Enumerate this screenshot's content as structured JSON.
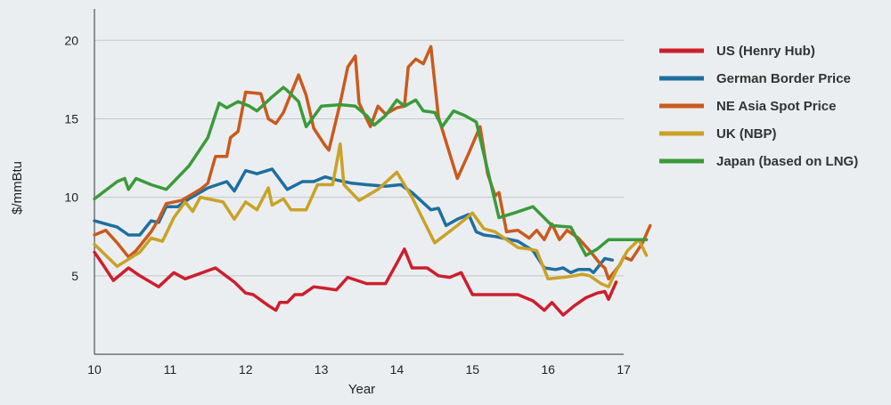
{
  "chart_data": {
    "type": "line",
    "xlabel": "Year",
    "ylabel": "$/mmBtu",
    "xlim": [
      10,
      17
    ],
    "ylim": [
      0,
      22
    ],
    "xticks": [
      10,
      11,
      12,
      13,
      14,
      15,
      16,
      17
    ],
    "xtick_labels": [
      "10",
      "11",
      "12",
      "13",
      "14",
      "15",
      "16",
      "17"
    ],
    "yticks": [
      5,
      10,
      15,
      20
    ],
    "ytick_labels": [
      "5",
      "10",
      "15",
      "20"
    ],
    "grid": "horizontal",
    "legend_position": "right",
    "series": [
      {
        "name": "US (Henry Hub)",
        "color": "#cc1f2e",
        "points": [
          [
            10.0,
            6.5
          ],
          [
            10.1,
            5.8
          ],
          [
            10.25,
            4.7
          ],
          [
            10.45,
            5.5
          ],
          [
            10.6,
            5.0
          ],
          [
            10.85,
            4.3
          ],
          [
            11.05,
            5.2
          ],
          [
            11.2,
            4.8
          ],
          [
            11.6,
            5.5
          ],
          [
            11.85,
            4.6
          ],
          [
            12.0,
            3.9
          ],
          [
            12.1,
            3.8
          ],
          [
            12.3,
            3.1
          ],
          [
            12.4,
            2.8
          ],
          [
            12.45,
            3.3
          ],
          [
            12.55,
            3.3
          ],
          [
            12.65,
            3.8
          ],
          [
            12.75,
            3.8
          ],
          [
            12.9,
            4.3
          ],
          [
            13.05,
            4.2
          ],
          [
            13.2,
            4.1
          ],
          [
            13.35,
            4.9
          ],
          [
            13.6,
            4.5
          ],
          [
            13.85,
            4.5
          ],
          [
            14.0,
            5.8
          ],
          [
            14.1,
            6.7
          ],
          [
            14.2,
            5.5
          ],
          [
            14.4,
            5.5
          ],
          [
            14.55,
            5.0
          ],
          [
            14.7,
            4.9
          ],
          [
            14.85,
            5.2
          ],
          [
            15.0,
            3.8
          ],
          [
            15.3,
            3.8
          ],
          [
            15.6,
            3.8
          ],
          [
            15.8,
            3.4
          ],
          [
            15.95,
            2.8
          ],
          [
            16.05,
            3.3
          ],
          [
            16.2,
            2.5
          ],
          [
            16.35,
            3.1
          ],
          [
            16.5,
            3.6
          ],
          [
            16.65,
            3.9
          ],
          [
            16.75,
            4.0
          ],
          [
            16.8,
            3.5
          ],
          [
            16.9,
            4.6
          ]
        ]
      },
      {
        "name": "German Border Price",
        "color": "#1e6fa0",
        "points": [
          [
            10.0,
            8.5
          ],
          [
            10.15,
            8.3
          ],
          [
            10.3,
            8.1
          ],
          [
            10.45,
            7.6
          ],
          [
            10.6,
            7.6
          ],
          [
            10.75,
            8.5
          ],
          [
            10.85,
            8.4
          ],
          [
            10.95,
            9.4
          ],
          [
            11.1,
            9.4
          ],
          [
            11.25,
            9.9
          ],
          [
            11.5,
            10.6
          ],
          [
            11.75,
            11.0
          ],
          [
            11.85,
            10.4
          ],
          [
            12.0,
            11.7
          ],
          [
            12.15,
            11.5
          ],
          [
            12.35,
            11.8
          ],
          [
            12.55,
            10.5
          ],
          [
            12.75,
            11.0
          ],
          [
            12.9,
            11.0
          ],
          [
            13.05,
            11.3
          ],
          [
            13.2,
            11.1
          ],
          [
            13.4,
            10.9
          ],
          [
            13.6,
            10.8
          ],
          [
            13.85,
            10.7
          ],
          [
            14.05,
            10.8
          ],
          [
            14.2,
            10.3
          ],
          [
            14.45,
            9.2
          ],
          [
            14.55,
            9.3
          ],
          [
            14.65,
            8.2
          ],
          [
            14.8,
            8.6
          ],
          [
            14.95,
            8.9
          ],
          [
            15.05,
            7.8
          ],
          [
            15.15,
            7.6
          ],
          [
            15.3,
            7.5
          ],
          [
            15.6,
            7.2
          ],
          [
            15.8,
            6.6
          ],
          [
            15.95,
            5.5
          ],
          [
            16.1,
            5.4
          ],
          [
            16.2,
            5.5
          ],
          [
            16.3,
            5.2
          ],
          [
            16.4,
            5.4
          ],
          [
            16.55,
            5.4
          ],
          [
            16.6,
            5.2
          ],
          [
            16.75,
            6.1
          ],
          [
            16.85,
            6.0
          ]
        ]
      },
      {
        "name": "NE Asia Spot Price",
        "color": "#c95a1e",
        "points": [
          [
            10.0,
            7.6
          ],
          [
            10.15,
            7.9
          ],
          [
            10.3,
            7.1
          ],
          [
            10.45,
            6.2
          ],
          [
            10.55,
            6.6
          ],
          [
            10.75,
            7.8
          ],
          [
            10.85,
            8.6
          ],
          [
            10.95,
            9.6
          ],
          [
            11.15,
            9.8
          ],
          [
            11.4,
            10.5
          ],
          [
            11.5,
            10.9
          ],
          [
            11.6,
            12.6
          ],
          [
            11.75,
            12.6
          ],
          [
            11.8,
            13.8
          ],
          [
            11.9,
            14.2
          ],
          [
            12.0,
            16.7
          ],
          [
            12.2,
            16.6
          ],
          [
            12.3,
            15.0
          ],
          [
            12.4,
            14.7
          ],
          [
            12.5,
            15.4
          ],
          [
            12.7,
            17.8
          ],
          [
            12.8,
            16.5
          ],
          [
            12.9,
            14.4
          ],
          [
            13.05,
            13.3
          ],
          [
            13.1,
            13.0
          ],
          [
            13.25,
            16.0
          ],
          [
            13.35,
            18.3
          ],
          [
            13.45,
            19.0
          ],
          [
            13.5,
            16.0
          ],
          [
            13.65,
            14.5
          ],
          [
            13.75,
            15.8
          ],
          [
            13.85,
            15.3
          ],
          [
            14.0,
            15.7
          ],
          [
            14.1,
            15.8
          ],
          [
            14.15,
            18.3
          ],
          [
            14.25,
            18.8
          ],
          [
            14.35,
            18.5
          ],
          [
            14.45,
            19.6
          ],
          [
            14.55,
            15.1
          ],
          [
            14.8,
            11.2
          ],
          [
            14.95,
            12.8
          ],
          [
            15.1,
            14.5
          ],
          [
            15.2,
            11.5
          ],
          [
            15.3,
            10.1
          ],
          [
            15.35,
            10.3
          ],
          [
            15.45,
            7.8
          ],
          [
            15.6,
            7.9
          ],
          [
            15.75,
            7.4
          ],
          [
            15.85,
            7.9
          ],
          [
            15.95,
            7.3
          ],
          [
            16.05,
            8.3
          ],
          [
            16.15,
            7.3
          ],
          [
            16.25,
            7.9
          ],
          [
            16.4,
            7.4
          ],
          [
            16.55,
            6.6
          ],
          [
            16.6,
            6.3
          ],
          [
            16.7,
            5.7
          ],
          [
            16.75,
            5.5
          ],
          [
            16.8,
            4.8
          ],
          [
            16.9,
            5.4
          ],
          [
            16.95,
            5.7
          ],
          [
            17.0,
            6.2
          ],
          [
            17.1,
            6.0
          ],
          [
            17.25,
            7.1
          ],
          [
            17.35,
            8.2
          ]
        ]
      },
      {
        "name": "UK (NBP)",
        "color": "#c9a227",
        "points": [
          [
            10.0,
            7.0
          ],
          [
            10.3,
            5.6
          ],
          [
            10.6,
            6.5
          ],
          [
            10.75,
            7.4
          ],
          [
            10.9,
            7.2
          ],
          [
            11.05,
            8.7
          ],
          [
            11.2,
            9.7
          ],
          [
            11.3,
            9.1
          ],
          [
            11.4,
            10.0
          ],
          [
            11.7,
            9.7
          ],
          [
            11.85,
            8.6
          ],
          [
            12.0,
            9.7
          ],
          [
            12.15,
            9.2
          ],
          [
            12.3,
            10.6
          ],
          [
            12.35,
            9.5
          ],
          [
            12.5,
            9.9
          ],
          [
            12.6,
            9.2
          ],
          [
            12.8,
            9.2
          ],
          [
            12.95,
            10.8
          ],
          [
            13.15,
            10.8
          ],
          [
            13.25,
            13.4
          ],
          [
            13.3,
            10.8
          ],
          [
            13.5,
            9.8
          ],
          [
            13.75,
            10.5
          ],
          [
            14.0,
            11.6
          ],
          [
            14.2,
            10.0
          ],
          [
            14.5,
            7.1
          ],
          [
            14.8,
            8.2
          ],
          [
            15.0,
            9.0
          ],
          [
            15.15,
            8.0
          ],
          [
            15.3,
            7.8
          ],
          [
            15.45,
            7.3
          ],
          [
            15.6,
            6.8
          ],
          [
            15.75,
            6.7
          ],
          [
            15.85,
            6.6
          ],
          [
            16.0,
            4.8
          ],
          [
            16.2,
            4.9
          ],
          [
            16.35,
            5.0
          ],
          [
            16.45,
            5.1
          ],
          [
            16.55,
            5.0
          ],
          [
            16.7,
            4.5
          ],
          [
            16.8,
            4.3
          ],
          [
            16.9,
            5.3
          ],
          [
            17.05,
            6.6
          ],
          [
            17.2,
            7.3
          ],
          [
            17.3,
            6.3
          ]
        ]
      },
      {
        "name": "Japan (based on LNG)",
        "color": "#3a9b3a",
        "points": [
          [
            10.0,
            9.9
          ],
          [
            10.3,
            11.0
          ],
          [
            10.4,
            11.2
          ],
          [
            10.45,
            10.5
          ],
          [
            10.55,
            11.2
          ],
          [
            10.75,
            10.8
          ],
          [
            10.95,
            10.5
          ],
          [
            11.25,
            12.0
          ],
          [
            11.5,
            13.8
          ],
          [
            11.65,
            16.0
          ],
          [
            11.75,
            15.7
          ],
          [
            11.9,
            16.1
          ],
          [
            12.05,
            15.8
          ],
          [
            12.15,
            15.5
          ],
          [
            12.35,
            16.4
          ],
          [
            12.5,
            17.0
          ],
          [
            12.55,
            16.8
          ],
          [
            12.7,
            16.1
          ],
          [
            12.8,
            14.5
          ],
          [
            12.85,
            14.8
          ],
          [
            13.0,
            15.8
          ],
          [
            13.25,
            15.9
          ],
          [
            13.45,
            15.8
          ],
          [
            13.6,
            15.2
          ],
          [
            13.7,
            14.6
          ],
          [
            13.85,
            15.2
          ],
          [
            14.0,
            16.2
          ],
          [
            14.1,
            15.8
          ],
          [
            14.25,
            16.2
          ],
          [
            14.35,
            15.5
          ],
          [
            14.5,
            15.4
          ],
          [
            14.6,
            14.5
          ],
          [
            14.75,
            15.5
          ],
          [
            14.9,
            15.2
          ],
          [
            15.05,
            14.8
          ],
          [
            15.35,
            8.7
          ],
          [
            15.55,
            9.0
          ],
          [
            15.8,
            9.4
          ],
          [
            16.05,
            8.2
          ],
          [
            16.3,
            8.1
          ],
          [
            16.5,
            6.3
          ],
          [
            16.65,
            6.7
          ],
          [
            16.8,
            7.3
          ],
          [
            17.1,
            7.3
          ],
          [
            17.3,
            7.3
          ]
        ]
      }
    ]
  }
}
